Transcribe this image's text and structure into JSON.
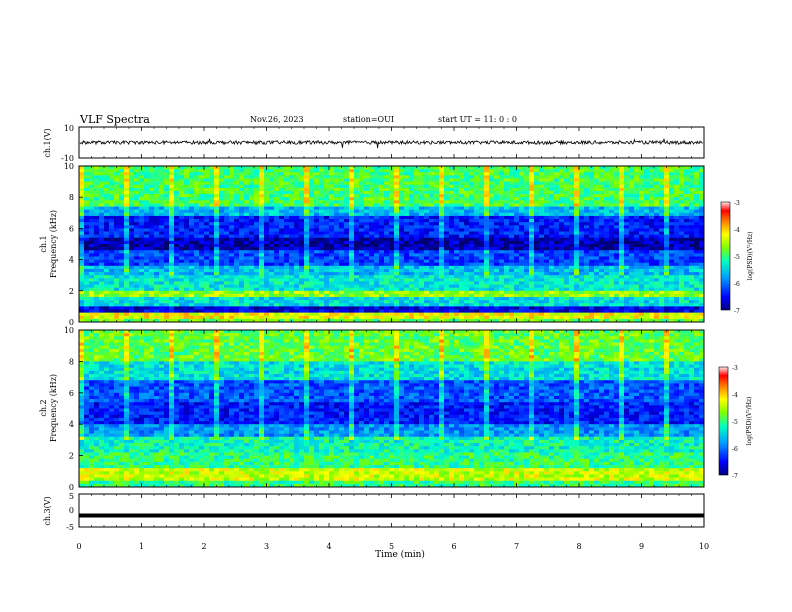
{
  "header": {
    "title": "VLF Spectra",
    "date": "Nov.26, 2023",
    "station": "station=OUI",
    "start": "start  UT =   11: 0  : 0"
  },
  "chart_data": [
    {
      "type": "line",
      "panel": "ch1-waveform",
      "ylabel": "ch.1(V)",
      "ylim": [
        -10,
        10
      ],
      "yticks": [
        "10",
        "-10"
      ],
      "baseline": 0,
      "note": "dense noisy waveform around 0 V with occasional spikes"
    },
    {
      "type": "heatmap",
      "panel": "ch1-spectrogram",
      "ylabel_line1": "ch.1",
      "ylabel_line2": "Frequency (kHz)",
      "ylim": [
        0,
        10
      ],
      "yticks": [
        0,
        2,
        4,
        6,
        8,
        10
      ],
      "xlim": [
        0,
        10
      ],
      "colorbar": {
        "min": -7,
        "max": -3,
        "ticks": [
          "-3",
          "-4",
          "-5",
          "-6",
          "-7"
        ],
        "label": "log(PSD)(V²/Hz)"
      },
      "bands": [
        {
          "f0": 0.0,
          "f1": 0.3,
          "level": 0.55
        },
        {
          "f0": 0.3,
          "f1": 0.6,
          "level": 0.7
        },
        {
          "f0": 0.6,
          "f1": 1.0,
          "level": 0.1
        },
        {
          "f0": 1.0,
          "f1": 1.6,
          "level": 0.4
        },
        {
          "f0": 1.6,
          "f1": 2.0,
          "level": 0.6
        },
        {
          "f0": 2.0,
          "f1": 3.0,
          "level": 0.42
        },
        {
          "f0": 3.0,
          "f1": 3.6,
          "level": 0.35
        },
        {
          "f0": 3.6,
          "f1": 4.6,
          "level": 0.2
        },
        {
          "f0": 4.6,
          "f1": 5.4,
          "level": 0.05
        },
        {
          "f0": 5.4,
          "f1": 6.8,
          "level": 0.15
        },
        {
          "f0": 6.8,
          "f1": 7.5,
          "level": 0.35
        },
        {
          "f0": 7.5,
          "f1": 10.0,
          "level": 0.52
        }
      ]
    },
    {
      "type": "heatmap",
      "panel": "ch2-spectrogram",
      "ylabel_line1": "ch.2",
      "ylabel_line2": "Frequency (kHz)",
      "ylim": [
        0,
        10
      ],
      "yticks": [
        0,
        2,
        4,
        6,
        8,
        10
      ],
      "xlim": [
        0,
        10
      ],
      "colorbar": {
        "min": -7,
        "max": -3,
        "ticks": [
          "-3",
          "-4",
          "-5",
          "-6",
          "-7"
        ],
        "label": "log(PSD)(V²/Hz)"
      },
      "bands": [
        {
          "f0": 0.0,
          "f1": 0.5,
          "level": 0.5
        },
        {
          "f0": 0.5,
          "f1": 1.2,
          "level": 0.65
        },
        {
          "f0": 1.2,
          "f1": 2.2,
          "level": 0.5
        },
        {
          "f0": 2.2,
          "f1": 3.2,
          "level": 0.45
        },
        {
          "f0": 3.2,
          "f1": 4.0,
          "level": 0.3
        },
        {
          "f0": 4.0,
          "f1": 5.5,
          "level": 0.15
        },
        {
          "f0": 5.5,
          "f1": 6.8,
          "level": 0.22
        },
        {
          "f0": 6.8,
          "f1": 8.0,
          "level": 0.4
        },
        {
          "f0": 8.0,
          "f1": 10.0,
          "level": 0.55
        }
      ]
    },
    {
      "type": "line",
      "panel": "ch3-waveform",
      "ylabel": "ch.3(V)",
      "ylim": [
        -5,
        5
      ],
      "yticks": [
        "5",
        "0",
        "-5"
      ],
      "baseline": -1.5,
      "note": "flat thick trace near -1.5 V"
    }
  ],
  "x_axis": {
    "label": "Time (min)",
    "ticks": [
      "0",
      "1",
      "2",
      "3",
      "4",
      "5",
      "6",
      "7",
      "8",
      "9",
      "10"
    ],
    "xlim": [
      0,
      10
    ]
  },
  "colors": {
    "scale": [
      "#000080",
      "#0000ff",
      "#0080ff",
      "#00ffff",
      "#40ff80",
      "#a0ff00",
      "#ffff00",
      "#ff8000",
      "#ff0000",
      "#ffe0e0"
    ]
  }
}
